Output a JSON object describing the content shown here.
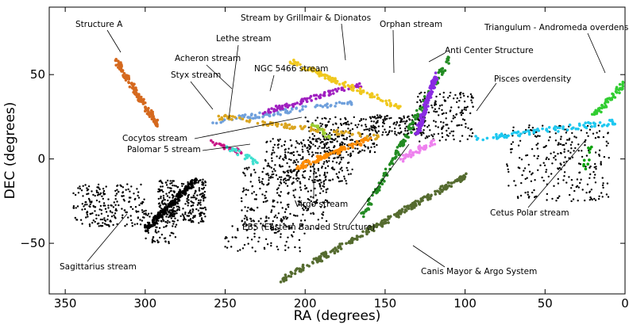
{
  "chart_data": {
    "type": "scatter",
    "title": "",
    "xlabel": "RA (degrees)",
    "ylabel": "DEC (degrees)",
    "xlim": [
      360,
      0
    ],
    "ylim": [
      -80,
      90
    ],
    "x_reversed": true,
    "grid": false,
    "xticks": [
      {
        "value": 350,
        "label": "350"
      },
      {
        "value": 300,
        "label": "300"
      },
      {
        "value": 250,
        "label": "250"
      },
      {
        "value": 200,
        "label": "200"
      },
      {
        "value": 150,
        "label": "150"
      },
      {
        "value": 100,
        "label": "100"
      },
      {
        "value": 50,
        "label": "50"
      },
      {
        "value": 0,
        "label": "0"
      }
    ],
    "yticks": [
      {
        "value": 50,
        "label": "50"
      },
      {
        "value": 0,
        "label": "0"
      },
      {
        "value": -50,
        "label": "−50"
      }
    ],
    "background_stars": {
      "color": "#000000",
      "clusters": [
        {
          "ra": [
            292,
            262
          ],
          "dec": [
            -38,
            -12
          ],
          "count": 300
        },
        {
          "ra": [
            345,
            300
          ],
          "dec": [
            -40,
            -15
          ],
          "count": 220
        },
        {
          "ra": [
            300,
            280
          ],
          "dec": [
            -50,
            -30
          ],
          "count": 90
        },
        {
          "ra": [
            240,
            185
          ],
          "dec": [
            -42,
            -5
          ],
          "count": 260
        },
        {
          "ra": [
            225,
            170
          ],
          "dec": [
            -15,
            12
          ],
          "count": 260
        },
        {
          "ra": [
            200,
            155
          ],
          "dec": [
            2,
            25
          ],
          "count": 200
        },
        {
          "ra": [
            160,
            125
          ],
          "dec": [
            14,
            26
          ],
          "count": 140
        },
        {
          "ra": [
            130,
            95
          ],
          "dec": [
            10,
            40
          ],
          "count": 160
        },
        {
          "ra": [
            75,
            10
          ],
          "dec": [
            -25,
            20
          ],
          "count": 260
        },
        {
          "ra": [
            250,
            200
          ],
          "dec": [
            -55,
            -35
          ],
          "count": 70
        }
      ]
    },
    "series": [
      {
        "key": "structure-a",
        "name": "Structure A",
        "color": "#d5691e",
        "ra": [
          292,
          318
        ],
        "dec": [
          20,
          58
        ],
        "count": 140
      },
      {
        "key": "sagittarius",
        "name": "Sagittarius stream",
        "color": "#000000",
        "ra": [
          300,
          268
        ],
        "dec": [
          -42,
          -12
        ],
        "count": 120
      },
      {
        "key": "styx",
        "name": "Styx stream",
        "color": "#6fa0dc",
        "ra": [
          258,
          168
        ],
        "dec": [
          22,
          34
        ],
        "count": 90
      },
      {
        "key": "acheron",
        "name": "Acheron stream",
        "color": "#c71585",
        "ra": [
          258,
          240
        ],
        "dec": [
          10,
          4
        ],
        "count": 25
      },
      {
        "key": "lethe",
        "name": "Lethe stream",
        "color": "#daa520",
        "ra": [
          255,
          150
        ],
        "dec": [
          25,
          12
        ],
        "count": 90
      },
      {
        "key": "ngc5466",
        "name": "NGC 5466 stream",
        "color": "#a020c0",
        "ra": [
          225,
          165
        ],
        "dec": [
          28,
          44
        ],
        "count": 80
      },
      {
        "key": "grillmair",
        "name": "Stream by Grillmair & Dionatos",
        "color": "#f0c81e",
        "ra": [
          210,
          140
        ],
        "dec": [
          58,
          30
        ],
        "count": 120
      },
      {
        "key": "orphan",
        "name": "Orphan stream",
        "color": "#228b22",
        "ra": [
          165,
          110
        ],
        "dec": [
          -35,
          60
        ],
        "count": 160
      },
      {
        "key": "anticenter",
        "name": "Anti Center Structure",
        "color": "#8a2be2",
        "ra": [
          130,
          118
        ],
        "dec": [
          15,
          50
        ],
        "count": 130
      },
      {
        "key": "cocytos",
        "name": "Cocytos stream",
        "color": "#9acd32",
        "ra": [
          195,
          182
        ],
        "dec": [
          20,
          12
        ],
        "count": 20
      },
      {
        "key": "palomar5",
        "name": "Palomar 5 stream",
        "color": "#40e0d0",
        "ra": [
          248,
          230
        ],
        "dec": [
          7,
          -2
        ],
        "count": 25
      },
      {
        "key": "virgo",
        "name": "Virgo stream",
        "color": "#ff8c00",
        "ra": [
          205,
          160
        ],
        "dec": [
          -5,
          12
        ],
        "count": 100
      },
      {
        "key": "ebs",
        "name": "EBS (Eastern Banded Structure)",
        "color": "#ee82ee",
        "ra": [
          140,
          120
        ],
        "dec": [
          0,
          10
        ],
        "count": 50
      },
      {
        "key": "canis-major",
        "name": "Canis Mayor & Argo System",
        "color": "#556b2f",
        "ra": [
          215,
          100
        ],
        "dec": [
          -72,
          -10
        ],
        "count": 260
      },
      {
        "key": "pisces",
        "name": "Pisces overdensity",
        "color": "#1ec8f0",
        "ra": [
          95,
          5
        ],
        "dec": [
          12,
          22
        ],
        "count": 90
      },
      {
        "key": "tri-and",
        "name": "Triangulum - Andromeda overdensity",
        "color": "#32cd32",
        "ra": [
          20,
          0
        ],
        "dec": [
          25,
          45
        ],
        "count": 60
      },
      {
        "key": "cetus",
        "name": "Cetus Polar stream",
        "color": "#00a000",
        "ra": [
          25,
          20
        ],
        "dec": [
          -5,
          10
        ],
        "count": 10
      }
    ]
  }
}
